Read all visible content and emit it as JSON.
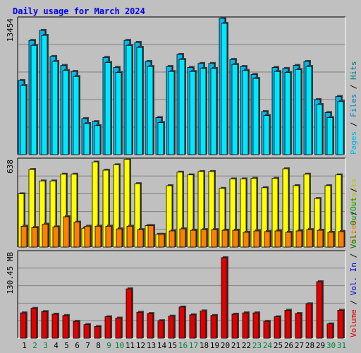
{
  "chart_data": [
    {
      "type": "bar",
      "title": "Daily usage for March 2024",
      "categories": [
        "1",
        "2",
        "3",
        "4",
        "5",
        "6",
        "7",
        "8",
        "9",
        "10",
        "11",
        "12",
        "13",
        "14",
        "15",
        "16",
        "17",
        "18",
        "19",
        "20",
        "21",
        "22",
        "23",
        "24",
        "25",
        "26",
        "27",
        "28",
        "29",
        "30",
        "31"
      ],
      "weekend_days": [
        "2",
        "3",
        "9",
        "10",
        "16",
        "17",
        "23",
        "24",
        "30",
        "31"
      ],
      "ylabel_max": "13454",
      "ylim": [
        0,
        13454
      ],
      "series": [
        {
          "name": "Hits",
          "values": [
            7400,
            11400,
            12400,
            9800,
            8900,
            8300,
            3600,
            3300,
            9700,
            8700,
            11400,
            11200,
            9300,
            3700,
            8800,
            10000,
            8700,
            9100,
            9100,
            13600,
            9500,
            8800,
            8000,
            4300,
            8700,
            8600,
            8900,
            9300,
            5500,
            4200,
            5800
          ]
        },
        {
          "name": "Files",
          "values": [
            6900,
            10900,
            11900,
            9300,
            8400,
            7800,
            3100,
            2900,
            9200,
            8200,
            10900,
            10700,
            8800,
            3200,
            8300,
            9500,
            8300,
            8600,
            8600,
            13100,
            9000,
            8400,
            7600,
            3900,
            8300,
            8200,
            8500,
            8800,
            5000,
            3700,
            5300
          ]
        }
      ],
      "legend": [
        "Hits",
        "Files",
        "Pages"
      ],
      "colors": {
        "hits": "#00b8f0",
        "files": "#00e8ff",
        "pages": "#00b8f0"
      }
    },
    {
      "type": "bar",
      "ylabel_max": "638",
      "ylim": [
        0,
        638
      ],
      "series": [
        {
          "name": "Visits",
          "values": [
            395,
            575,
            490,
            490,
            540,
            540,
            140,
            630,
            570,
            610,
            650,
            470,
            160,
            95,
            455,
            555,
            535,
            560,
            560,
            435,
            505,
            505,
            510,
            440,
            510,
            580,
            455,
            540,
            360,
            455,
            535
          ]
        },
        {
          "name": "Sites",
          "values": [
            155,
            145,
            170,
            150,
            225,
            185,
            155,
            155,
            155,
            135,
            155,
            130,
            160,
            95,
            120,
            135,
            125,
            130,
            130,
            125,
            125,
            110,
            120,
            115,
            120,
            110,
            120,
            130,
            125,
            110,
            115
          ]
        }
      ],
      "legend": [
        "Visits",
        "Sites",
        "Out"
      ],
      "colors": {
        "visits": "#ffff00",
        "sites": "#ff8000",
        "out": "#00a000"
      }
    },
    {
      "type": "bar",
      "ylabel_max": "130.45 MB",
      "ylim": [
        0,
        130.45
      ],
      "series": [
        {
          "name": "Volume",
          "values": [
            39,
            46,
            41,
            37,
            35,
            26,
            21,
            18,
            33,
            31,
            76,
            40,
            38,
            27,
            34,
            48,
            36,
            42,
            35,
            124,
            37,
            39,
            39,
            26,
            33,
            43,
            38,
            53,
            87,
            22,
            43
          ]
        }
      ],
      "legend": [
        "Vol. Out",
        "Vol. In",
        "Volume"
      ],
      "colors": {
        "volume": "#e00000",
        "vol_in": "#0000e0",
        "vol_out": "#008000"
      }
    }
  ]
}
